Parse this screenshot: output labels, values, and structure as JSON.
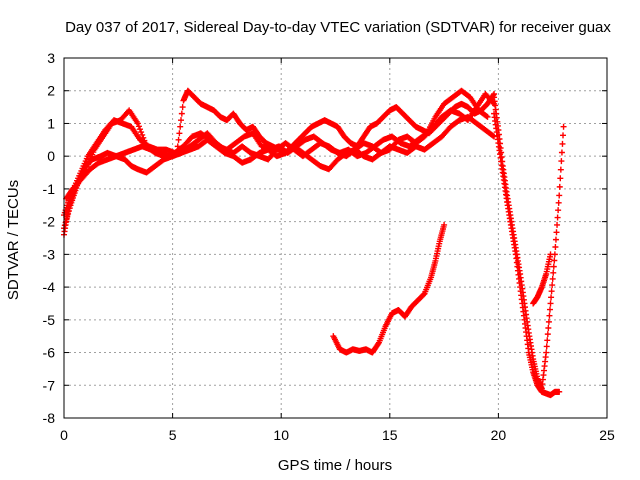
{
  "chart_data": {
    "type": "scatter",
    "title": "Day 037 of 2017, Sidereal Day-to-day VTEC variation (SDTVAR) for receiver guax",
    "xlabel": "GPS time / hours",
    "ylabel": "SDTVAR / TECUs",
    "xlim": [
      0,
      25
    ],
    "ylim": [
      -8,
      3
    ],
    "x_ticks": [
      "0",
      "5",
      "10",
      "15",
      "20",
      "25"
    ],
    "y_ticks": [
      "3",
      "2",
      "1",
      "0",
      "-1",
      "-2",
      "-3",
      "-4",
      "-5",
      "-6",
      "-7",
      "-8"
    ],
    "grid": true,
    "legend": "none",
    "marker": "+",
    "color": "#ff0000",
    "series": [
      {
        "x": [
          0.0,
          0.2,
          0.5,
          0.8,
          1.0,
          1.3,
          1.7,
          2.0,
          2.4,
          2.8,
          3.1,
          3.4,
          3.8,
          4.2,
          4.6,
          5.0,
          5.4,
          5.8,
          6.2,
          6.6,
          7.0,
          7.4,
          7.8,
          8.2,
          8.6,
          9.0,
          9.4,
          9.8,
          10.2,
          10.6,
          11.0,
          11.4,
          11.8,
          12.2,
          12.6,
          13.0,
          13.4,
          13.8,
          14.2,
          14.6,
          15.0,
          15.4,
          15.8,
          16.2,
          16.6,
          17.0,
          17.4,
          17.8,
          18.2,
          18.6,
          19.0,
          19.4,
          19.8
        ],
        "y": [
          -2.4,
          -1.6,
          -1.0,
          -0.6,
          -0.3,
          -0.1,
          0.0,
          0.1,
          0.0,
          -0.1,
          -0.3,
          -0.4,
          -0.5,
          -0.3,
          -0.1,
          0.0,
          0.1,
          0.2,
          0.3,
          0.5,
          0.3,
          0.1,
          0.0,
          -0.2,
          -0.1,
          0.1,
          0.2,
          0.0,
          0.1,
          0.3,
          0.1,
          -0.1,
          -0.3,
          -0.4,
          -0.1,
          0.1,
          0.2,
          0.0,
          -0.1,
          0.1,
          0.3,
          0.2,
          0.1,
          0.3,
          0.2,
          0.4,
          0.6,
          0.9,
          1.1,
          1.2,
          1.0,
          0.8,
          0.6
        ]
      },
      {
        "x": [
          0.0,
          0.3,
          0.6,
          1.0,
          1.4,
          1.8,
          2.2,
          2.6,
          3.0,
          3.4,
          3.8,
          4.2,
          4.6,
          5.0,
          5.4,
          5.8,
          6.2,
          6.6,
          7.0,
          7.4,
          7.8,
          8.2,
          8.6,
          9.0,
          9.4,
          9.8,
          10.2,
          10.6,
          11.0,
          11.4,
          11.8,
          12.2,
          12.6,
          13.0,
          13.4,
          13.8,
          14.2,
          14.6,
          15.0,
          15.4,
          15.8,
          16.2,
          16.6,
          17.0,
          17.4,
          17.8,
          18.2,
          18.6,
          19.0,
          19.4,
          19.8
        ],
        "y": [
          -2.2,
          -1.5,
          -0.9,
          -0.4,
          0.2,
          0.6,
          1.0,
          1.1,
          1.4,
          1.0,
          0.3,
          0.1,
          0.0,
          0.0,
          0.1,
          0.3,
          0.5,
          0.7,
          0.4,
          0.2,
          0.1,
          0.3,
          0.1,
          0.0,
          -0.1,
          0.2,
          0.4,
          0.2,
          0.0,
          0.2,
          0.4,
          0.3,
          0.1,
          0.0,
          0.2,
          0.4,
          0.3,
          0.1,
          0.2,
          0.5,
          0.6,
          0.4,
          0.6,
          0.9,
          1.2,
          1.4,
          1.3,
          1.1,
          1.5,
          1.9,
          1.6
        ]
      },
      {
        "x": [
          0.0,
          0.3,
          0.7,
          1.1,
          1.5,
          1.9,
          2.3,
          2.7,
          3.1,
          3.5,
          3.9,
          4.3,
          4.7,
          5.1,
          5.5,
          5.9,
          6.3,
          6.7,
          7.1,
          7.5,
          7.9,
          8.3,
          8.7,
          9.1,
          9.5,
          9.9,
          10.3,
          10.7,
          11.1,
          11.5,
          11.9,
          12.3,
          12.7,
          13.1,
          13.5,
          13.9,
          14.3,
          14.7,
          15.1,
          15.5,
          15.9,
          16.3,
          16.7,
          17.1,
          17.5,
          17.9,
          18.3,
          18.7,
          19.1,
          19.5
        ],
        "y": [
          -1.8,
          -1.2,
          -0.6,
          0.0,
          0.4,
          0.8,
          1.1,
          1.0,
          0.9,
          0.5,
          0.3,
          0.2,
          0.2,
          0.1,
          0.3,
          0.6,
          0.7,
          0.5,
          0.3,
          0.2,
          0.4,
          0.6,
          0.7,
          0.3,
          0.2,
          0.3,
          0.1,
          0.3,
          0.5,
          0.6,
          0.4,
          0.2,
          0.1,
          0.2,
          0.0,
          0.1,
          0.3,
          0.5,
          0.6,
          0.4,
          0.3,
          0.5,
          0.7,
          1.2,
          1.6,
          1.8,
          2.0,
          1.8,
          1.4,
          1.2
        ]
      },
      {
        "x": [
          0.1,
          0.4,
          0.8,
          1.2,
          1.6,
          2.0,
          2.4,
          2.8,
          3.2,
          3.6,
          4.0,
          4.4,
          4.8,
          5.2,
          5.5,
          5.7,
          6.0,
          6.3,
          6.6,
          6.9,
          7.2,
          7.5,
          7.8,
          8.1,
          8.4,
          8.7,
          9.0,
          9.3,
          9.6,
          9.9,
          10.2,
          10.5,
          10.8,
          11.1,
          11.4,
          11.7,
          12.0,
          12.3,
          12.6,
          12.9,
          13.2,
          13.5,
          13.8,
          14.1,
          14.4,
          14.7,
          15.0,
          15.3,
          15.6,
          15.9,
          16.2,
          16.5,
          16.8,
          17.1,
          17.4,
          17.7,
          18.0,
          18.3,
          18.6,
          18.9,
          19.2,
          19.5,
          19.8
        ],
        "y": [
          -1.3,
          -1.0,
          -0.7,
          -0.4,
          -0.2,
          -0.1,
          0.0,
          0.1,
          0.2,
          0.3,
          0.2,
          0.1,
          0.0,
          0.1,
          1.7,
          2.0,
          1.8,
          1.6,
          1.5,
          1.4,
          1.2,
          1.1,
          1.3,
          1.0,
          0.8,
          0.9,
          0.6,
          0.4,
          0.3,
          0.2,
          0.1,
          0.3,
          0.5,
          0.7,
          0.9,
          1.0,
          1.1,
          1.0,
          0.9,
          0.6,
          0.4,
          0.3,
          0.6,
          0.9,
          1.0,
          1.2,
          1.4,
          1.5,
          1.3,
          1.1,
          0.9,
          0.8,
          0.7,
          0.9,
          1.1,
          1.3,
          1.5,
          1.6,
          1.5,
          1.3,
          1.4,
          1.6,
          1.9
        ]
      },
      {
        "x": [
          19.8,
          20.0,
          20.2,
          20.4,
          20.6,
          20.8,
          21.0,
          21.2,
          21.4,
          21.6,
          21.8,
          22.0,
          22.2,
          22.4,
          22.6,
          22.8,
          23.0
        ],
        "y": [
          1.8,
          0.8,
          -0.3,
          -1.2,
          -2.0,
          -2.8,
          -3.6,
          -4.5,
          -5.4,
          -6.2,
          -6.8,
          -7.1,
          -6.0,
          -4.5,
          -3.0,
          -1.2,
          0.9
        ]
      },
      {
        "x": [
          19.8,
          20.0,
          20.2,
          20.4,
          20.6,
          20.8,
          21.0,
          21.2,
          21.4,
          21.6,
          21.8,
          22.0,
          22.2,
          22.4,
          22.6,
          22.8
        ],
        "y": [
          1.3,
          0.4,
          -0.5,
          -1.4,
          -2.2,
          -3.0,
          -4.0,
          -5.0,
          -6.0,
          -6.6,
          -7.0,
          -7.2,
          -7.25,
          -7.3,
          -7.2,
          -7.2
        ]
      },
      {
        "x": [
          21.6,
          21.8,
          22.0,
          22.2,
          22.4
        ],
        "y": [
          -4.5,
          -4.3,
          -4.0,
          -3.6,
          -3.0
        ]
      },
      {
        "x": [
          12.4,
          12.7,
          13.0,
          13.3,
          13.6,
          13.9,
          14.2,
          14.5,
          14.8,
          15.1,
          15.4,
          15.7,
          16.0,
          16.3,
          16.6,
          16.9,
          17.1,
          17.3,
          17.5
        ],
        "y": [
          -5.5,
          -5.9,
          -6.0,
          -5.9,
          -5.95,
          -5.9,
          -6.0,
          -5.7,
          -5.2,
          -4.8,
          -4.7,
          -4.9,
          -4.6,
          -4.4,
          -4.2,
          -3.7,
          -3.2,
          -2.6,
          -2.1
        ]
      }
    ]
  }
}
